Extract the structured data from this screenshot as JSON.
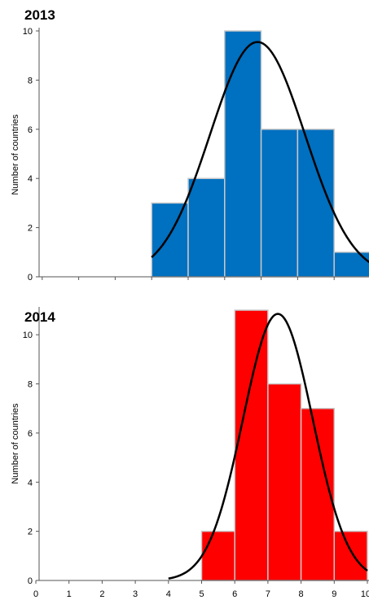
{
  "chart_data": [
    {
      "type": "bar",
      "title": "2013",
      "ylabel": "Number of countries",
      "xlabel": "",
      "xlim": [
        0,
        10
      ],
      "ylim": [
        0,
        10
      ],
      "yticks": [
        0,
        2,
        4,
        6,
        8,
        10
      ],
      "xticks": [],
      "bin_width": 1,
      "bins": [
        {
          "x0": 4,
          "x1": 5,
          "count": 3
        },
        {
          "x0": 5,
          "x1": 6,
          "count": 4
        },
        {
          "x0": 6,
          "x1": 7,
          "count": 10
        },
        {
          "x0": 7,
          "x1": 8,
          "count": 6
        },
        {
          "x0": 8,
          "x1": 9,
          "count": 6
        },
        {
          "x0": 9,
          "x1": 10,
          "count": 1
        }
      ],
      "bar_color": "#0070c0",
      "curve": {
        "type": "normal",
        "mean": 6.9,
        "sd": 1.3,
        "peak": 9.55,
        "x_range": [
          4,
          10
        ]
      },
      "grid": false,
      "legend": "none"
    },
    {
      "type": "bar",
      "title": "2014",
      "ylabel": "Number of countries",
      "xlabel": "",
      "xlim": [
        0,
        10
      ],
      "ylim": [
        0,
        11
      ],
      "yticks": [
        0,
        2,
        4,
        6,
        8,
        10
      ],
      "xticks": [
        {
          "value": 0,
          "label": "0"
        },
        {
          "value": 1,
          "label": "1"
        },
        {
          "value": 2,
          "label": "2"
        },
        {
          "value": 3,
          "label": "3"
        },
        {
          "value": 4,
          "label": "4"
        },
        {
          "value": 5,
          "label": "5"
        },
        {
          "value": 6,
          "label": "6"
        },
        {
          "value": 7,
          "label": "7"
        },
        {
          "value": 8,
          "label": "8"
        },
        {
          "value": 9,
          "label": "9"
        },
        {
          "value": 10,
          "label": "10"
        }
      ],
      "bin_width": 1,
      "bins": [
        {
          "x0": 5,
          "x1": 6,
          "count": 2
        },
        {
          "x0": 6,
          "x1": 7,
          "count": 11
        },
        {
          "x0": 7,
          "x1": 8,
          "count": 8
        },
        {
          "x0": 8,
          "x1": 9,
          "count": 7
        },
        {
          "x0": 9,
          "x1": 10,
          "count": 2
        }
      ],
      "bar_color": "#ff0000",
      "curve": {
        "type": "normal",
        "mean": 7.3,
        "sd": 1.05,
        "peak": 10.85,
        "x_range": [
          4,
          10
        ]
      },
      "grid": false,
      "legend": "none"
    }
  ]
}
